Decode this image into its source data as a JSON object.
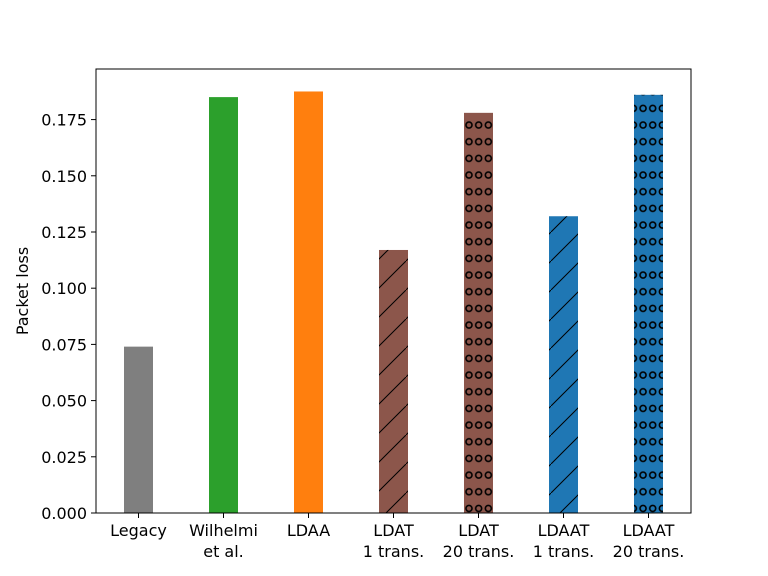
{
  "chart_data": {
    "type": "bar",
    "title": "",
    "xlabel": "",
    "ylabel": "Packet loss",
    "ylim": [
      0,
      0.1975
    ],
    "yticks": [
      0.0,
      0.025,
      0.05,
      0.075,
      0.1,
      0.125,
      0.15,
      0.175
    ],
    "ytick_labels": [
      "0.000",
      "0.025",
      "0.050",
      "0.075",
      "0.100",
      "0.125",
      "0.150",
      "0.175"
    ],
    "grid": false,
    "categories": [
      [
        "Legacy"
      ],
      [
        "Wilhelmi",
        "et al."
      ],
      [
        "LDAA"
      ],
      [
        "LDAT",
        "1 trans."
      ],
      [
        "LDAT",
        "20 trans."
      ],
      [
        "LDAAT",
        "1 trans."
      ],
      [
        "LDAAT",
        "20 trans."
      ]
    ],
    "values": [
      0.074,
      0.185,
      0.1875,
      0.117,
      0.178,
      0.132,
      0.186
    ],
    "colors": [
      "#7f7f7f",
      "#2ca02c",
      "#ff7f0e",
      "#8c564b",
      "#8c564b",
      "#1f77b4",
      "#1f77b4"
    ],
    "hatches": [
      "none",
      "none",
      "none",
      "diagonal",
      "circles",
      "diagonal",
      "circles"
    ]
  }
}
